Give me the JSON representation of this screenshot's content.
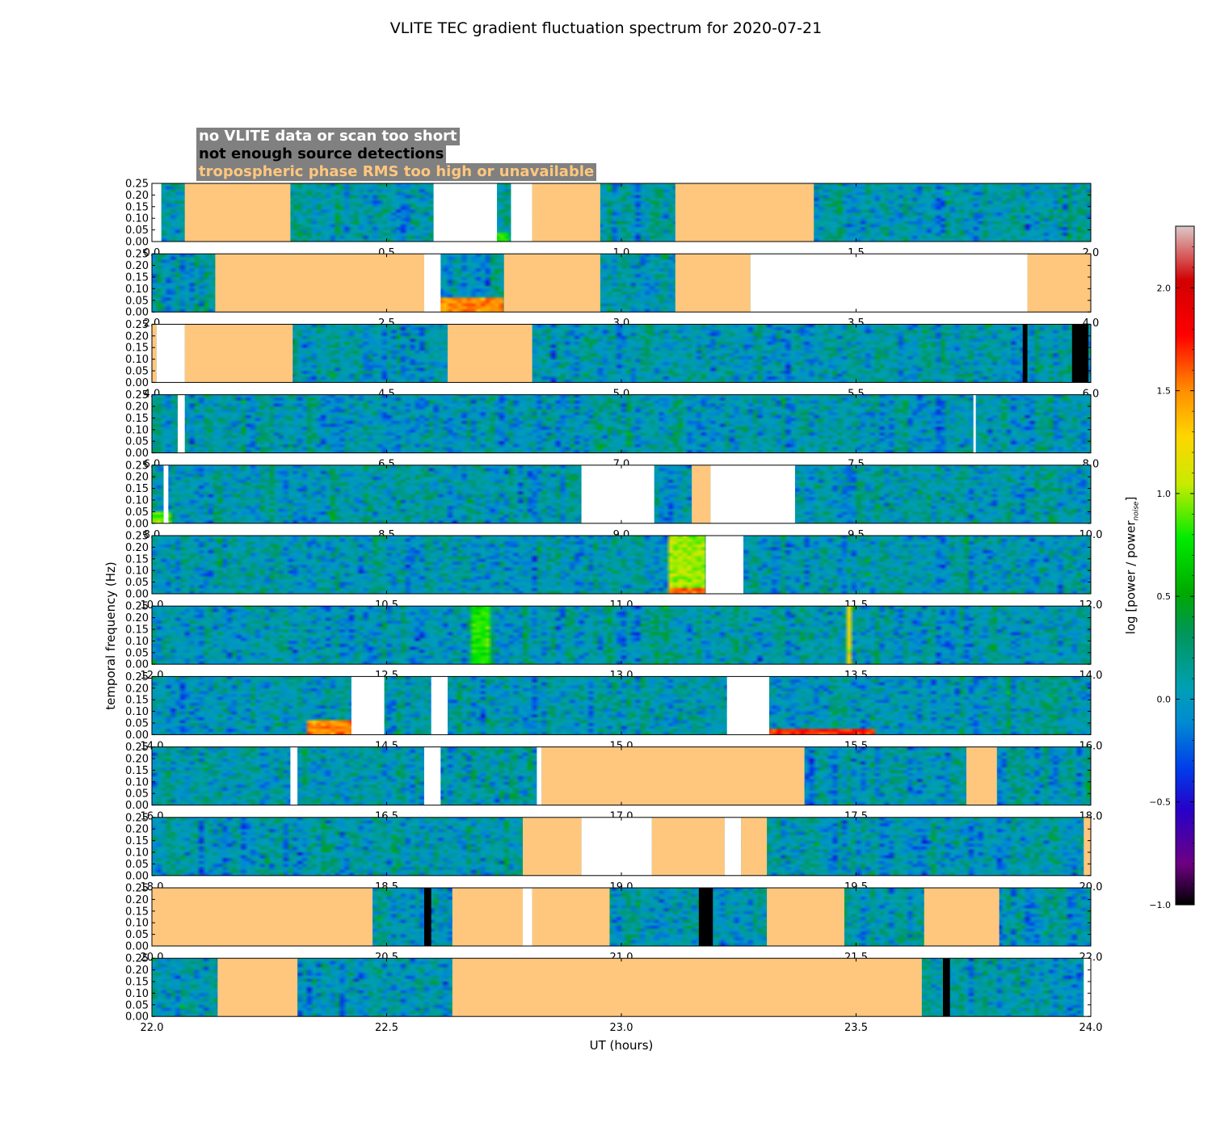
{
  "chart_data": {
    "type": "heatmap",
    "title": "VLITE TEC gradient fluctuation spectrum for 2020-07-21",
    "xlabel": "UT (hours)",
    "ylabel": "temporal frequency (Hz)",
    "colorbar_label": "log [power / power",
    "colorbar_label_sub": "noise",
    "colorbar_label_end": "]",
    "colorbar_range": [
      -1.0,
      2.3
    ],
    "colorbar_ticks": [
      "2.0",
      "1.5",
      "1.0",
      "0.5",
      "0.0",
      "−0.5",
      "−1.0"
    ],
    "colorbar_tick_values": [
      2.0,
      1.5,
      1.0,
      0.5,
      0.0,
      -0.5,
      -1.0
    ],
    "y_ticks": [
      "0.25",
      "0.20",
      "0.15",
      "0.10",
      "0.05",
      "0.00"
    ],
    "y_tick_values": [
      0.25,
      0.2,
      0.15,
      0.1,
      0.05,
      0.0
    ],
    "ylim": [
      0,
      0.25
    ],
    "legend": {
      "no_data": "no VLITE data or scan too short",
      "few_detections": "not enough source detections",
      "trop_rms": "tropospheric phase RMS too high or unavailable"
    },
    "category_colors": {
      "no_data": "#ffffff",
      "few_detections": "#000000",
      "trop_rms": "#ffc77e"
    },
    "panels": [
      {
        "start": 0,
        "end": 2,
        "x_ticks": [
          "0.0",
          "0.5",
          "1.0",
          "1.5",
          "2.0"
        ],
        "no_data": [
          [
            0,
            0.02
          ],
          [
            0.6,
            0.735
          ],
          [
            0.765,
            0.81
          ]
        ],
        "trop_rms": [
          [
            0.07,
            0.295
          ],
          [
            0.81,
            0.955
          ],
          [
            1.115,
            1.41
          ]
        ],
        "few_detections": [],
        "hot": [
          [
            0.73,
            0.76,
            0.04,
            0.8
          ]
        ]
      },
      {
        "start": 2,
        "end": 4,
        "x_ticks": [
          "2.0",
          "2.5",
          "3.0",
          "3.5",
          "4.0"
        ],
        "no_data": [
          [
            2.58,
            2.615
          ],
          [
            3.275,
            3.865
          ]
        ],
        "trop_rms": [
          [
            2.135,
            2.58
          ],
          [
            2.75,
            2.955
          ],
          [
            3.115,
            3.275
          ],
          [
            3.865,
            4.0
          ]
        ],
        "few_detections": [],
        "hot": [
          [
            2.615,
            2.75,
            0.06,
            1.5
          ]
        ]
      },
      {
        "start": 4,
        "end": 6,
        "x_ticks": [
          "4.0",
          "4.5",
          "5.0",
          "5.5",
          "6.0"
        ],
        "no_data": [
          [
            4.01,
            4.07
          ]
        ],
        "trop_rms": [
          [
            4.0,
            4.01
          ],
          [
            4.07,
            4.3
          ],
          [
            4.63,
            4.81
          ]
        ],
        "few_detections": [
          [
            5.855,
            5.865
          ],
          [
            5.96,
            5.995
          ]
        ],
        "hot": []
      },
      {
        "start": 6,
        "end": 8,
        "x_ticks": [
          "6.0",
          "6.5",
          "7.0",
          "7.5",
          "8.0"
        ],
        "no_data": [
          [
            6.055,
            6.07
          ],
          [
            7.75,
            7.755
          ]
        ],
        "trop_rms": [],
        "few_detections": [],
        "hot": []
      },
      {
        "start": 8,
        "end": 10,
        "x_ticks": [
          "8.0",
          "8.5",
          "9.0",
          "9.5",
          "10.0"
        ],
        "no_data": [
          [
            8.025,
            8.035
          ],
          [
            8.915,
            9.07
          ],
          [
            9.19,
            9.37
          ]
        ],
        "trop_rms": [
          [
            9.15,
            9.19
          ]
        ],
        "few_detections": [],
        "hot": [
          [
            8.0,
            8.04,
            0.05,
            0.9
          ]
        ]
      },
      {
        "start": 10,
        "end": 12,
        "x_ticks": [
          "10.0",
          "10.5",
          "11.0",
          "11.5",
          "12.0"
        ],
        "no_data": [
          [
            11.18,
            11.26
          ]
        ],
        "trop_rms": [],
        "few_detections": [],
        "hot": [
          [
            11.1,
            11.18,
            0.25,
            1.0
          ],
          [
            11.1,
            11.18,
            0.03,
            1.6
          ]
        ]
      },
      {
        "start": 12,
        "end": 14,
        "x_ticks": [
          "12.0",
          "12.5",
          "13.0",
          "13.5",
          "14.0"
        ],
        "no_data": [],
        "trop_rms": [],
        "few_detections": [],
        "hot": [
          [
            13.485,
            13.495,
            0.25,
            1.2
          ],
          [
            12.68,
            12.72,
            0.25,
            0.8
          ]
        ]
      },
      {
        "start": 14,
        "end": 16,
        "x_ticks": [
          "14.0",
          "14.5",
          "15.0",
          "15.5",
          "16.0"
        ],
        "no_data": [
          [
            14.425,
            14.495
          ],
          [
            14.595,
            14.63
          ],
          [
            15.225,
            15.315
          ]
        ],
        "trop_rms": [],
        "few_detections": [],
        "hot": [
          [
            14.33,
            14.425,
            0.06,
            1.5
          ],
          [
            15.315,
            15.54,
            0.02,
            1.7
          ]
        ]
      },
      {
        "start": 16,
        "end": 18,
        "x_ticks": [
          "16.0",
          "16.5",
          "17.0",
          "17.5",
          "18.0"
        ],
        "no_data": [
          [
            16.295,
            16.31
          ],
          [
            16.58,
            16.615
          ],
          [
            16.82,
            16.83
          ]
        ],
        "trop_rms": [
          [
            16.83,
            17.39
          ],
          [
            17.735,
            17.8
          ]
        ],
        "few_detections": [],
        "hot": []
      },
      {
        "start": 18,
        "end": 20,
        "x_ticks": [
          "18.0",
          "18.5",
          "19.0",
          "19.5",
          "20.0"
        ],
        "no_data": [
          [
            18.915,
            19.065
          ],
          [
            19.22,
            19.255
          ]
        ],
        "trop_rms": [
          [
            18.79,
            18.915
          ],
          [
            19.065,
            19.22
          ],
          [
            19.255,
            19.31
          ],
          [
            19.985,
            20.0
          ]
        ],
        "few_detections": [],
        "hot": []
      },
      {
        "start": 20,
        "end": 22,
        "x_ticks": [
          "20.0",
          "20.5",
          "21.0",
          "21.5",
          "22.0"
        ],
        "no_data": [
          [
            20.79,
            20.81
          ]
        ],
        "trop_rms": [
          [
            20.0,
            20.47
          ],
          [
            20.64,
            20.79
          ],
          [
            20.81,
            20.975
          ],
          [
            21.31,
            21.475
          ],
          [
            21.645,
            21.805
          ]
        ],
        "few_detections": [
          [
            20.58,
            20.595
          ],
          [
            21.165,
            21.195
          ]
        ],
        "hot": []
      },
      {
        "start": 22,
        "end": 24,
        "x_ticks": [
          "22.0",
          "22.5",
          "23.0",
          "23.5",
          "24.0"
        ],
        "no_data": [
          [
            23.985,
            24.0
          ]
        ],
        "trop_rms": [
          [
            22.14,
            22.31
          ],
          [
            22.64,
            23.64
          ]
        ],
        "few_detections": [
          [
            23.685,
            23.7
          ]
        ],
        "hot": []
      }
    ]
  }
}
